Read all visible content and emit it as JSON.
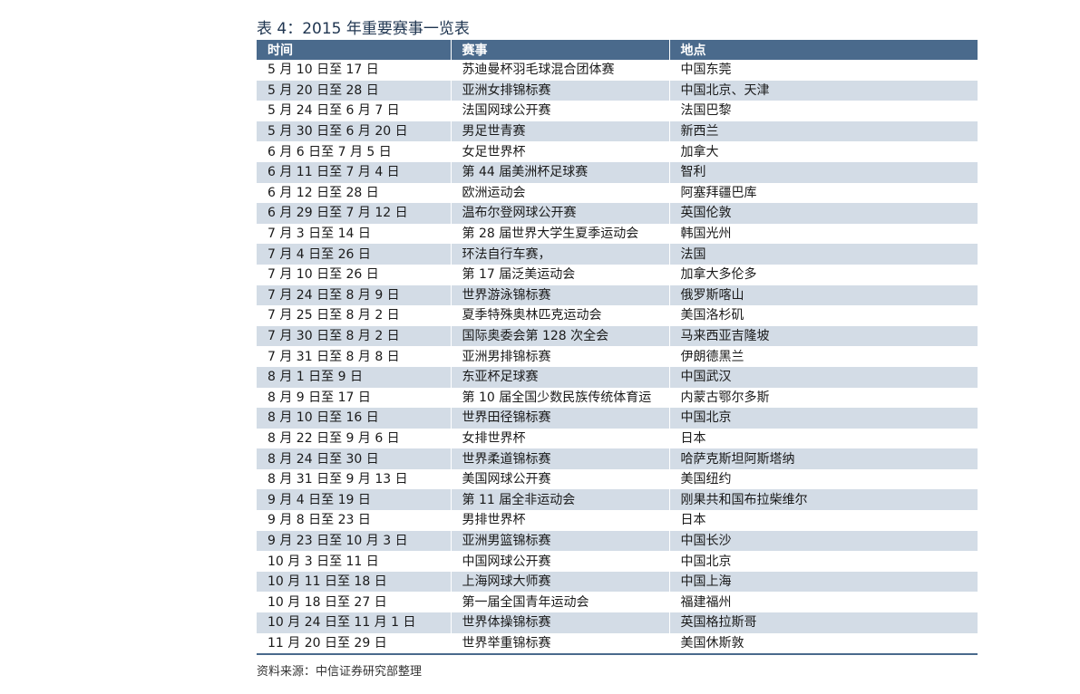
{
  "title": "表 4：2015 年重要赛事一览表",
  "table": {
    "header": [
      "时间",
      "赛事",
      "地点"
    ],
    "rows": [
      [
        "5 月 10 日至 17 日",
        "苏迪曼杯羽毛球混合团体赛",
        "中国东莞"
      ],
      [
        "5 月 20 日至 28 日",
        "亚洲女排锦标赛",
        "中国北京、天津"
      ],
      [
        "5 月 24 日至 6 月 7 日",
        "法国网球公开赛",
        "法国巴黎"
      ],
      [
        "5 月 30 日至 6 月 20 日",
        "男足世青赛",
        "新西兰"
      ],
      [
        "6 月 6 日至 7 月 5 日",
        "女足世界杯",
        "加拿大"
      ],
      [
        "6 月 11 日至 7 月 4 日",
        "第 44 届美洲杯足球赛",
        "智利"
      ],
      [
        "6 月 12 日至 28 日",
        "欧洲运动会",
        "阿塞拜疆巴库"
      ],
      [
        "6 月 29 日至 7 月 12 日",
        "温布尔登网球公开赛",
        "英国伦敦"
      ],
      [
        "7 月 3 日至 14 日",
        "第 28 届世界大学生夏季运动会",
        "韩国光州"
      ],
      [
        "7 月 4 日至 26 日",
        "环法自行车赛，",
        "法国"
      ],
      [
        "7 月 10 日至 26 日",
        "第 17 届泛美运动会",
        "加拿大多伦多"
      ],
      [
        "7 月 24 日至 8 月 9 日",
        "世界游泳锦标赛",
        "俄罗斯喀山"
      ],
      [
        "7 月 25 日至 8 月 2 日",
        "夏季特殊奥林匹克运动会",
        "美国洛杉矶"
      ],
      [
        "7 月 30 日至 8 月 2 日",
        "国际奥委会第 128 次全会",
        "马来西亚吉隆坡"
      ],
      [
        "7 月 31 日至 8 月 8 日",
        "亚洲男排锦标赛",
        "伊朗德黑兰"
      ],
      [
        "8 月 1 日至 9 日",
        "东亚杯足球赛",
        "中国武汉"
      ],
      [
        "8 月 9 日至 17 日",
        "第 10 届全国少数民族传统体育运",
        "内蒙古鄂尔多斯"
      ],
      [
        "8 月 10 日至 16 日",
        "世界田径锦标赛",
        "中国北京"
      ],
      [
        "8 月 22 日至 9 月 6 日",
        "女排世界杯",
        "日本"
      ],
      [
        "8 月 24 日至 30 日",
        "世界柔道锦标赛",
        "哈萨克斯坦阿斯塔纳"
      ],
      [
        "8 月 31 日至 9 月 13 日",
        "美国网球公开赛",
        "美国纽约"
      ],
      [
        "9 月 4 日至 19 日",
        "第 11 届全非运动会",
        "刚果共和国布拉柴维尔"
      ],
      [
        "9 月 8 日至 23 日",
        "男排世界杯",
        "日本"
      ],
      [
        "9 月 23 日至 10 月 3 日",
        "亚洲男篮锦标赛",
        "中国长沙"
      ],
      [
        "10 月 3 日至 11 日",
        "中国网球公开赛",
        "中国北京"
      ],
      [
        "10 月 11 日至 18 日",
        "上海网球大师赛",
        "中国上海"
      ],
      [
        "10 月 18 日至 27 日",
        "第一届全国青年运动会",
        "福建福州"
      ],
      [
        "10 月 24 日至 11 月 1 日",
        "世界体操锦标赛",
        "英国格拉斯哥"
      ],
      [
        "11 月 20 日至 29 日",
        "世界举重锦标赛",
        "美国休斯敦"
      ]
    ]
  },
  "source": "资料来源：中信证券研究部整理"
}
